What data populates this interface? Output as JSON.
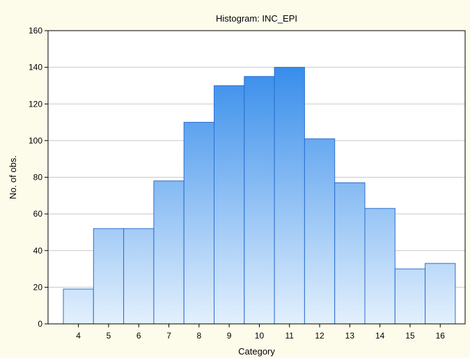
{
  "chart_data": {
    "type": "bar",
    "title": "Histogram: INC_EPI",
    "xlabel": "Category",
    "ylabel": "No. of obs.",
    "categories": [
      "4",
      "5",
      "6",
      "7",
      "8",
      "9",
      "10",
      "11",
      "12",
      "13",
      "14",
      "15",
      "16"
    ],
    "values": [
      19,
      52,
      52,
      78,
      110,
      130,
      135,
      140,
      101,
      77,
      63,
      30,
      33
    ],
    "ylim": [
      0,
      160
    ],
    "yticks": [
      0,
      20,
      40,
      60,
      80,
      100,
      120,
      140,
      160
    ],
    "grid": true,
    "legend": "none",
    "colors": {
      "bar_top": "#1f7fe8",
      "bar_bottom": "#e3f0fd",
      "bar_edge": "#2a6fcf",
      "plot_bg": "#ffffff",
      "page_bg": "#fdfbea",
      "grid": "#c8c8c8"
    }
  }
}
